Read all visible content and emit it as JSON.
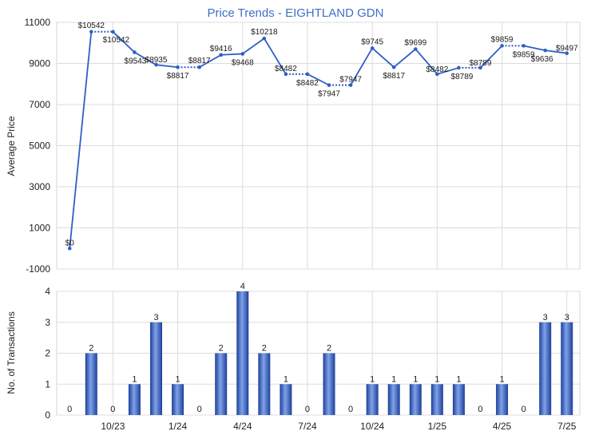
{
  "chart_data": [
    {
      "type": "line",
      "title": "Price Trends - EIGHTLAND GDN",
      "xlabel": "",
      "ylabel": "Average Price",
      "ylim": [
        -1000,
        11000
      ],
      "yticks": [
        "-1000",
        "1000",
        "3000",
        "5000",
        "7000",
        "9000",
        "11000"
      ],
      "grid": true,
      "points": [
        {
          "label": "$0",
          "value": 0,
          "dashed_to_next": false
        },
        {
          "label": "$10542",
          "value": 10542,
          "dashed_to_next": true
        },
        {
          "label": "$10542",
          "value": 10542,
          "dashed_to_next": false
        },
        {
          "label": "$9543",
          "value": 9543,
          "dashed_to_next": false
        },
        {
          "label": "$8935",
          "value": 8935,
          "dashed_to_next": false
        },
        {
          "label": "$8817",
          "value": 8817,
          "dashed_to_next": true
        },
        {
          "label": "$8817",
          "value": 8817,
          "dashed_to_next": false
        },
        {
          "label": "$9416",
          "value": 9416,
          "dashed_to_next": false
        },
        {
          "label": "$9468",
          "value": 9468,
          "dashed_to_next": false
        },
        {
          "label": "$10218",
          "value": 10218,
          "dashed_to_next": false
        },
        {
          "label": "$8482",
          "value": 8482,
          "dashed_to_next": true
        },
        {
          "label": "$8482",
          "value": 8482,
          "dashed_to_next": false
        },
        {
          "label": "$7947",
          "value": 7947,
          "dashed_to_next": true
        },
        {
          "label": "$7947",
          "value": 7947,
          "dashed_to_next": false
        },
        {
          "label": "$9745",
          "value": 9745,
          "dashed_to_next": false
        },
        {
          "label": "$8817",
          "value": 8817,
          "dashed_to_next": false
        },
        {
          "label": "$9699",
          "value": 9699,
          "dashed_to_next": false
        },
        {
          "label": "$8482",
          "value": 8482,
          "dashed_to_next": false
        },
        {
          "label": "$8789",
          "value": 8789,
          "dashed_to_next": true
        },
        {
          "label": "$8789",
          "value": 8789,
          "dashed_to_next": false
        },
        {
          "label": "$9859",
          "value": 9859,
          "dashed_to_next": true
        },
        {
          "label": "$9859",
          "value": 9859,
          "dashed_to_next": false
        },
        {
          "label": "$9636",
          "value": 9636,
          "dashed_to_next": false
        },
        {
          "label": "$9497",
          "value": 9497,
          "dashed_to_next": false
        }
      ],
      "color": "#2f5fc4"
    },
    {
      "type": "bar",
      "xlabel": "",
      "ylabel": "No. of Transactions",
      "ylim": [
        0,
        4
      ],
      "yticks": [
        "0",
        "1",
        "2",
        "3",
        "4"
      ],
      "grid": true,
      "x_tick_labels": [
        {
          "label": "10/23",
          "index": 2
        },
        {
          "label": "1/24",
          "index": 5
        },
        {
          "label": "4/24",
          "index": 8
        },
        {
          "label": "7/24",
          "index": 11
        },
        {
          "label": "10/24",
          "index": 14
        },
        {
          "label": "1/25",
          "index": 17
        },
        {
          "label": "4/25",
          "index": 20
        },
        {
          "label": "7/25",
          "index": 23
        }
      ],
      "values": [
        0,
        2,
        0,
        1,
        3,
        1,
        0,
        2,
        4,
        2,
        1,
        0,
        2,
        0,
        1,
        1,
        1,
        1,
        1,
        0,
        1,
        0,
        3,
        3
      ],
      "color": "#3a66c4"
    }
  ]
}
